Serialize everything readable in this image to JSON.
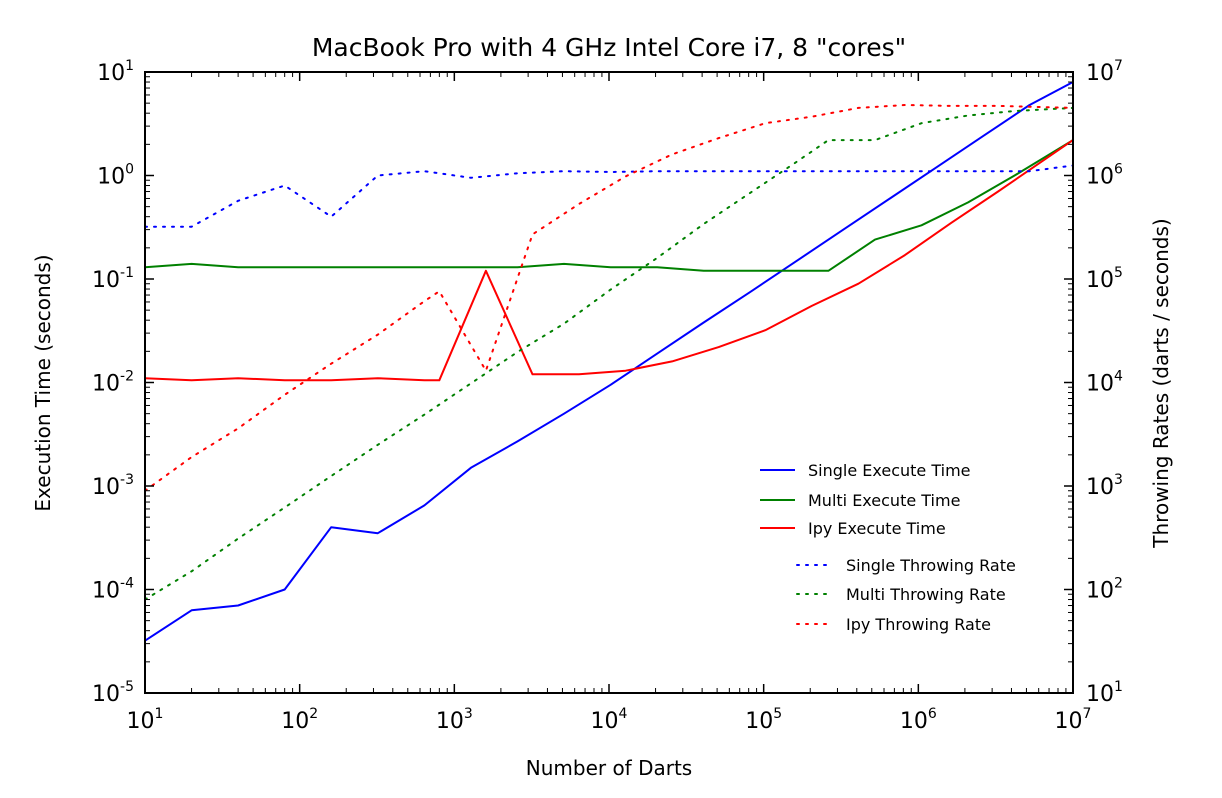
{
  "chart_data": {
    "type": "line",
    "title": "MacBook Pro with 4 GHz Intel Core i7, 8 \"cores\"",
    "xlabel": "Number of Darts",
    "ylabel_left": "Execution Time (seconds)",
    "ylabel_right": "Throwing Rates (darts / seconds)",
    "x_scale": "log",
    "y_left_scale": "log",
    "y_right_scale": "log",
    "xlim": [
      10,
      10000000
    ],
    "ylim_left": [
      1e-05,
      10
    ],
    "ylim_right": [
      10,
      10000000
    ],
    "x_ticks": [
      {
        "base": "10",
        "exp": "1"
      },
      {
        "base": "10",
        "exp": "2"
      },
      {
        "base": "10",
        "exp": "3"
      },
      {
        "base": "10",
        "exp": "4"
      },
      {
        "base": "10",
        "exp": "5"
      },
      {
        "base": "10",
        "exp": "6"
      },
      {
        "base": "10",
        "exp": "7"
      }
    ],
    "y_left_ticks": [
      {
        "base": "10",
        "exp": "-5"
      },
      {
        "base": "10",
        "exp": "-4"
      },
      {
        "base": "10",
        "exp": "-3"
      },
      {
        "base": "10",
        "exp": "-2"
      },
      {
        "base": "10",
        "exp": "-1"
      },
      {
        "base": "10",
        "exp": "0"
      },
      {
        "base": "10",
        "exp": "1"
      }
    ],
    "y_right_ticks": [
      {
        "base": "10",
        "exp": "1"
      },
      {
        "base": "10",
        "exp": "2"
      },
      {
        "base": "10",
        "exp": "3"
      },
      {
        "base": "10",
        "exp": "4"
      },
      {
        "base": "10",
        "exp": "5"
      },
      {
        "base": "10",
        "exp": "6"
      },
      {
        "base": "10",
        "exp": "7"
      }
    ],
    "legend_position": "lower-right",
    "grid": false,
    "series": [
      {
        "name": "Single Execute Time",
        "axis": "left",
        "style": "solid",
        "color": "#0000ff",
        "x": [
          10,
          20,
          40,
          80,
          160,
          320,
          640,
          1280,
          2560,
          5120,
          10240,
          20480,
          40960,
          81920,
          163840,
          327680,
          655360,
          1310720,
          2621440,
          5242880,
          10000000
        ],
        "y": [
          3.2e-05,
          6.3e-05,
          7e-05,
          0.0001,
          0.0004,
          0.00035,
          0.00065,
          0.0015,
          0.0027,
          0.005,
          0.0095,
          0.019,
          0.038,
          0.075,
          0.15,
          0.3,
          0.6,
          1.2,
          2.4,
          4.8,
          8
        ]
      },
      {
        "name": "Multi Execute Time",
        "axis": "left",
        "style": "solid",
        "color": "#008000",
        "x": [
          10,
          20,
          40,
          80,
          160,
          320,
          640,
          1280,
          2560,
          5120,
          10240,
          20480,
          40960,
          81920,
          163840,
          262144,
          524288,
          1048576,
          2097152,
          4194304,
          10000000
        ],
        "y": [
          0.13,
          0.14,
          0.13,
          0.13,
          0.13,
          0.13,
          0.13,
          0.13,
          0.13,
          0.14,
          0.13,
          0.13,
          0.12,
          0.12,
          0.12,
          0.12,
          0.24,
          0.33,
          0.55,
          1.0,
          2.2
        ]
      },
      {
        "name": "Ipy Execute Time",
        "axis": "left",
        "style": "solid",
        "color": "#ff0000",
        "x": [
          10,
          20,
          40,
          80,
          160,
          320,
          640,
          800,
          1600,
          3200,
          6400,
          12800,
          25600,
          51200,
          102400,
          204800,
          409600,
          819200,
          1638400,
          3276800,
          10000000
        ],
        "y": [
          0.011,
          0.0105,
          0.011,
          0.0105,
          0.0105,
          0.011,
          0.0105,
          0.0105,
          0.12,
          0.012,
          0.012,
          0.013,
          0.016,
          0.022,
          0.032,
          0.055,
          0.09,
          0.17,
          0.35,
          0.7,
          2.2
        ]
      },
      {
        "name": "Single Throwing Rate",
        "axis": "right",
        "style": "dotted",
        "color": "#0000ff",
        "x": [
          10,
          20,
          40,
          80,
          160,
          320,
          640,
          1280,
          2560,
          5120,
          10240,
          20480,
          40960,
          81920,
          163840,
          327680,
          655360,
          1310720,
          2621440,
          5242880,
          10000000
        ],
        "y": [
          320000,
          320000,
          570000,
          800000,
          400000,
          1000000,
          1100000,
          950000,
          1050000,
          1100000,
          1080000,
          1100000,
          1100000,
          1100000,
          1100000,
          1100000,
          1100000,
          1100000,
          1100000,
          1100000,
          1250000
        ]
      },
      {
        "name": "Multi Throwing Rate",
        "axis": "right",
        "style": "dotted",
        "color": "#008000",
        "x": [
          10,
          20,
          40,
          80,
          160,
          320,
          640,
          1280,
          2560,
          5120,
          10240,
          20480,
          40960,
          81920,
          163840,
          262144,
          524288,
          1048576,
          2097152,
          4194304,
          10000000
        ],
        "y": [
          80,
          150,
          310,
          620,
          1250,
          2500,
          4900,
          9800,
          19700,
          37000,
          79000,
          160000,
          340000,
          680000,
          1360000,
          2200000,
          2200000,
          3200000,
          3800000,
          4200000,
          4500000
        ]
      },
      {
        "name": "Ipy Throwing Rate",
        "axis": "right",
        "style": "dotted",
        "color": "#ff0000",
        "x": [
          10,
          20,
          40,
          80,
          160,
          320,
          640,
          800,
          1600,
          3200,
          6400,
          12800,
          25600,
          51200,
          102400,
          204800,
          409600,
          819200,
          1638400,
          3276800,
          10000000
        ],
        "y": [
          900,
          1900,
          3600,
          7600,
          15200,
          29000,
          61000,
          76000,
          13000,
          270000,
          530000,
          980000,
          1600000,
          2300000,
          3200000,
          3700000,
          4500000,
          4800000,
          4700000,
          4700000,
          4500000
        ]
      }
    ]
  }
}
